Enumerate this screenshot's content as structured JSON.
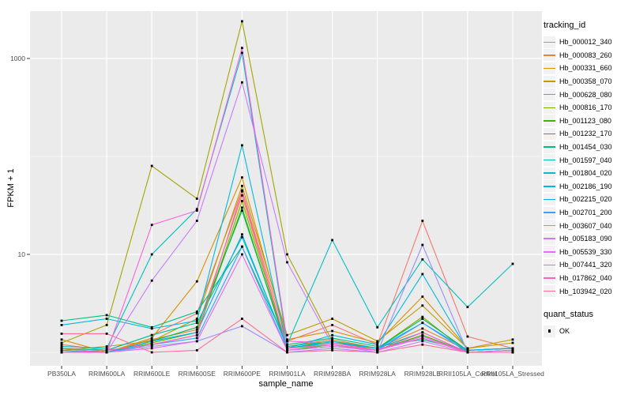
{
  "chart_data": {
    "type": "line",
    "title": "",
    "xlabel": "sample_name",
    "ylabel": "FPKM + 1",
    "y_scale": "log10",
    "panel_bg": "#EBEBEB",
    "grid_color": "#FFFFFF",
    "point_color": "#000000",
    "point_shape": "filled-square",
    "y_axis": {
      "major_breaks": [
        10,
        1000
      ],
      "major_labels": [
        "10",
        "1000"
      ],
      "minor_breaks": [
        1,
        100
      ]
    },
    "categories": [
      "PB350LA",
      "RRIM600LA",
      "RRIM600LE",
      "RRIM600SE",
      "RRIM600PE",
      "RRIM901LA",
      "RRIM928BA",
      "RRIM928LA",
      "RRIM928LE",
      "RRII105LA_Control",
      "RRII105LA_Stressed"
    ],
    "legend": {
      "color_title": "tracking_id",
      "shape_title": "quant_status",
      "shape_items": [
        {
          "label": "OK"
        }
      ]
    },
    "series": [
      {
        "name": "Hb_000012_340",
        "color": "#F8766D",
        "values": [
          1.2,
          1.05,
          1.5,
          2.5,
          45,
          1.3,
          1.9,
          1.2,
          22,
          1.45,
          1.1
        ]
      },
      {
        "name": "Hb_000083_260",
        "color": "#EA8331",
        "values": [
          1.1,
          1.0,
          1.35,
          1.7,
          40,
          1.15,
          1.35,
          1.1,
          1.75,
          1.05,
          1.1
        ]
      },
      {
        "name": "Hb_000331_660",
        "color": "#D89000",
        "values": [
          1.35,
          1.0,
          1.4,
          5.3,
          61,
          1.35,
          1.65,
          1.25,
          3.7,
          1.1,
          1.25
        ]
      },
      {
        "name": "Hb_000358_070",
        "color": "#C09B00",
        "values": [
          1.05,
          1.15,
          1.3,
          2.2,
          50,
          1.5,
          2.2,
          1.3,
          3.0,
          1.1,
          1.35
        ]
      },
      {
        "name": "Hb_000628_080",
        "color": "#A3A500",
        "values": [
          1.25,
          1.9,
          80,
          37,
          2400,
          10,
          1.3,
          1.05,
          1.5,
          1.0,
          1.05
        ]
      },
      {
        "name": "Hb_000816_170",
        "color": "#7CAE00",
        "values": [
          1.0,
          1.05,
          1.2,
          1.5,
          35,
          1.1,
          1.25,
          1.1,
          2.3,
          1.0,
          1.05
        ]
      },
      {
        "name": "Hb_001123_080",
        "color": "#39B600",
        "values": [
          1.05,
          1.0,
          1.25,
          1.6,
          30,
          1.05,
          1.2,
          1.05,
          1.5,
          1.0,
          1.0
        ]
      },
      {
        "name": "Hb_001232_170",
        "color": "#00BB4E",
        "values": [
          1.0,
          1.0,
          1.3,
          1.8,
          28,
          1.1,
          1.3,
          1.1,
          2.2,
          1.05,
          1.1
        ]
      },
      {
        "name": "Hb_001454_030",
        "color": "#00BF7D",
        "values": [
          2.1,
          2.4,
          1.8,
          2.6,
          12,
          1.2,
          1.4,
          1.15,
          1.35,
          1.05,
          1.1
        ]
      },
      {
        "name": "Hb_001597_040",
        "color": "#00C1A3",
        "values": [
          1.1,
          1.05,
          1.5,
          2.0,
          15,
          1.15,
          1.3,
          1.1,
          1.6,
          1.0,
          1.05
        ]
      },
      {
        "name": "Hb_001804_020",
        "color": "#00BFC4",
        "values": [
          1.15,
          1.1,
          10,
          29,
          1140,
          1.2,
          14,
          1.8,
          8.9,
          2.9,
          8.0
        ]
      },
      {
        "name": "Hb_002186_190",
        "color": "#00BAE0",
        "values": [
          1.9,
          2.2,
          1.75,
          2.1,
          130,
          1.1,
          1.5,
          1.2,
          6.3,
          1.05,
          1.1
        ]
      },
      {
        "name": "Hb_002215_020",
        "color": "#00B0F6",
        "values": [
          1.05,
          1.0,
          1.3,
          1.6,
          16,
          1.1,
          1.25,
          1.1,
          2.0,
          1.05,
          1.1
        ]
      },
      {
        "name": "Hb_002701_200",
        "color": "#35A2FF",
        "values": [
          1.0,
          1.0,
          1.2,
          1.4,
          12,
          1.05,
          1.15,
          1.05,
          2.0,
          1.0,
          1.05
        ]
      },
      {
        "name": "Hb_003607_040",
        "color": "#9590FF",
        "values": [
          1.0,
          1.0,
          1.15,
          1.3,
          1.85,
          1.0,
          1.1,
          1.0,
          12.5,
          1.0,
          1.0
        ]
      },
      {
        "name": "Hb_005183_090",
        "color": "#C77CFF",
        "values": [
          1.0,
          1.0,
          5.4,
          22,
          570,
          8.3,
          1.2,
          1.0,
          1.3,
          1.0,
          1.0
        ]
      },
      {
        "name": "Hb_005539_330",
        "color": "#E76BF3",
        "values": [
          1.0,
          1.0,
          1.1,
          1.3,
          10,
          1.05,
          1.15,
          1.05,
          1.45,
          1.0,
          1.0
        ]
      },
      {
        "name": "Hb_007441_320",
        "color": "#FA62DB",
        "values": [
          1.0,
          1.0,
          20,
          28,
          1280,
          1.3,
          1.25,
          1.05,
          1.4,
          1.0,
          1.05
        ]
      },
      {
        "name": "Hb_017862_040",
        "color": "#FF62BC",
        "values": [
          1.0,
          1.05,
          1.2,
          1.5,
          44,
          1.1,
          1.2,
          1.05,
          1.6,
          1.0,
          1.0
        ]
      },
      {
        "name": "Hb_103942_020",
        "color": "#FF6A98",
        "values": [
          1.55,
          1.55,
          1.0,
          1.05,
          2.2,
          1.0,
          1.05,
          1.0,
          1.2,
          1.0,
          1.0
        ]
      }
    ]
  }
}
